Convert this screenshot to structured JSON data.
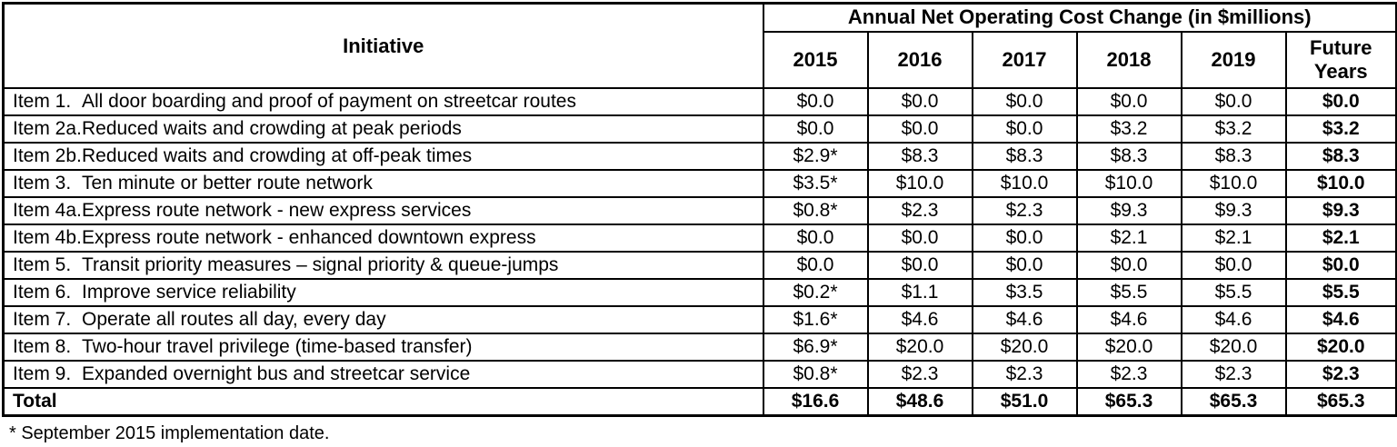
{
  "table": {
    "header": {
      "initiative_label": "Initiative",
      "group_label": "Annual Net Operating Cost Change (in $millions)",
      "year_columns": [
        "2015",
        "2016",
        "2017",
        "2018",
        "2019",
        "Future Years"
      ]
    },
    "rows": [
      {
        "item": "Item 1.",
        "description": "All door boarding and proof of payment on streetcar routes",
        "values": [
          "$0.0",
          "$0.0",
          "$0.0",
          "$0.0",
          "$0.0",
          "$0.0"
        ]
      },
      {
        "item": "Item 2a.",
        "description": "Reduced waits and crowding at peak periods",
        "values": [
          "$0.0",
          "$0.0",
          "$0.0",
          "$3.2",
          "$3.2",
          "$3.2"
        ]
      },
      {
        "item": "Item 2b.",
        "description": "Reduced waits and crowding at off-peak times",
        "values": [
          "$2.9*",
          "$8.3",
          "$8.3",
          "$8.3",
          "$8.3",
          "$8.3"
        ]
      },
      {
        "item": "Item 3.",
        "description": "Ten minute or better route network",
        "values": [
          "$3.5*",
          "$10.0",
          "$10.0",
          "$10.0",
          "$10.0",
          "$10.0"
        ]
      },
      {
        "item": "Item 4a.",
        "description": "Express route network - new express services",
        "values": [
          "$0.8*",
          "$2.3",
          "$2.3",
          "$9.3",
          "$9.3",
          "$9.3"
        ]
      },
      {
        "item": "Item 4b.",
        "description": "Express route network - enhanced downtown express",
        "values": [
          "$0.0",
          "$0.0",
          "$0.0",
          "$2.1",
          "$2.1",
          "$2.1"
        ]
      },
      {
        "item": "Item 5.",
        "description": "Transit priority measures – signal priority & queue-jumps",
        "values": [
          "$0.0",
          "$0.0",
          "$0.0",
          "$0.0",
          "$0.0",
          "$0.0"
        ]
      },
      {
        "item": "Item 6.",
        "description": "Improve service reliability",
        "values": [
          "$0.2*",
          "$1.1",
          "$3.5",
          "$5.5",
          "$5.5",
          "$5.5"
        ]
      },
      {
        "item": "Item 7.",
        "description": "Operate all routes all day, every day",
        "values": [
          "$1.6*",
          "$4.6",
          "$4.6",
          "$4.6",
          "$4.6",
          "$4.6"
        ]
      },
      {
        "item": "Item 8.",
        "description": "Two-hour travel privilege (time-based transfer)",
        "values": [
          "$6.9*",
          "$20.0",
          "$20.0",
          "$20.0",
          "$20.0",
          "$20.0"
        ]
      },
      {
        "item": "Item 9.",
        "description": "Expanded overnight bus and streetcar service",
        "values": [
          "$0.8*",
          "$2.3",
          "$2.3",
          "$2.3",
          "$2.3",
          "$2.3"
        ]
      }
    ],
    "total": {
      "label": "Total",
      "values": [
        "$16.6",
        "$48.6",
        "$51.0",
        "$65.3",
        "$65.3",
        "$65.3"
      ]
    },
    "footnote": "* September 2015 implementation date.",
    "colors": {
      "text": "#000000",
      "border": "#000000",
      "background": "#ffffff"
    }
  }
}
